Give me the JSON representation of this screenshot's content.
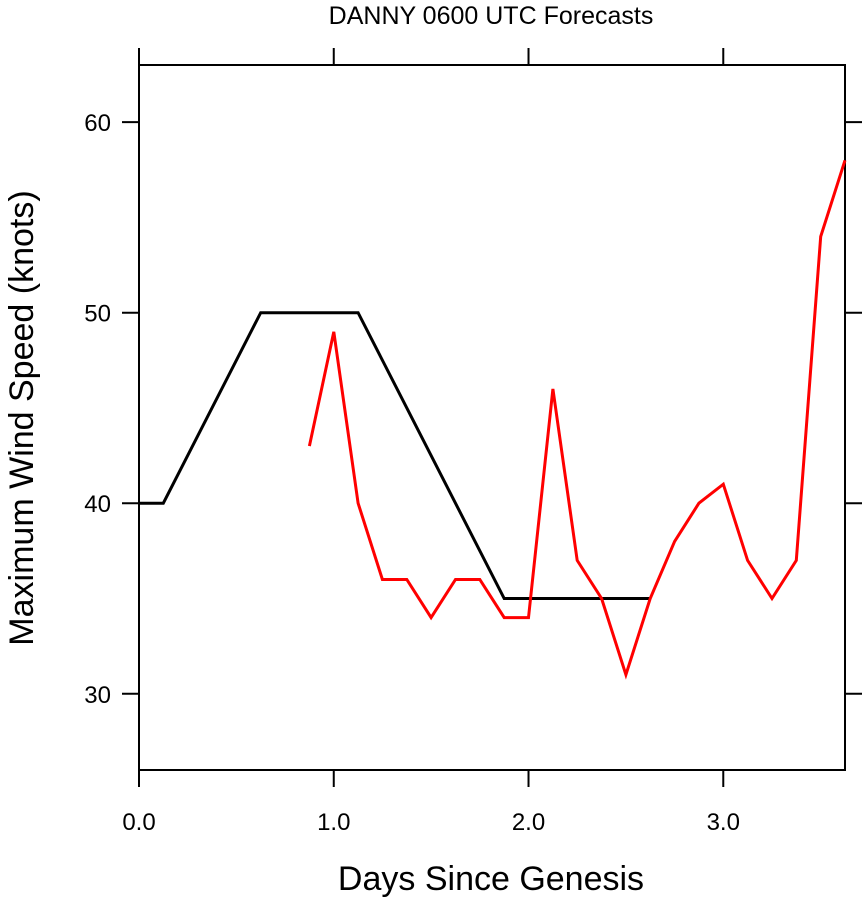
{
  "chart_data": {
    "type": "line",
    "title": "DANNY 0600 UTC Forecasts",
    "xlabel": "Days Since Genesis",
    "ylabel": "Maximum Wind Speed (knots)",
    "xlim": [
      0.0,
      3.625
    ],
    "ylim": [
      26,
      63
    ],
    "x_ticks": [
      0,
      1,
      2,
      3
    ],
    "x_tick_labels": [
      "0.0",
      "1.0",
      "2.0",
      "3.0"
    ],
    "y_ticks": [
      30,
      40,
      50,
      60
    ],
    "y_tick_labels": [
      "30",
      "40",
      "50",
      "60"
    ],
    "grid": false,
    "series": [
      {
        "color": "#000000",
        "x": [
          0.0,
          0.125,
          0.625,
          1.125,
          1.875,
          2.625
        ],
        "y": [
          40,
          40,
          50,
          50,
          35,
          35
        ]
      },
      {
        "color": "#ff0000",
        "x": [
          0.875,
          1.0,
          1.125,
          1.25,
          1.375,
          1.5,
          1.625,
          1.75,
          1.875,
          2.0,
          2.125,
          2.25,
          2.375,
          2.5,
          2.625,
          2.75,
          2.875,
          3.0,
          3.125,
          3.25,
          3.375,
          3.5,
          3.625
        ],
        "y": [
          43,
          49,
          40,
          36,
          36,
          34,
          36,
          36,
          34,
          34,
          46,
          37,
          35,
          31,
          35,
          38,
          40,
          41,
          37,
          35,
          37,
          54,
          58
        ]
      }
    ]
  }
}
